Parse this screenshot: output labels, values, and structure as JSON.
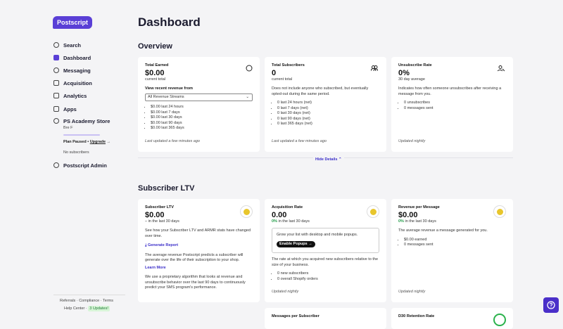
{
  "sidebar": {
    "logo": "Postscript",
    "nav": [
      "Search",
      "Dashboard",
      "Messaging",
      "Acquisition",
      "Analytics",
      "Apps"
    ],
    "store": {
      "name": "PS Academy Store",
      "user": "Bre F",
      "plan": "Plan Paused •",
      "upgrade": "Upgrade",
      "no_subscribers": "No subscribers"
    },
    "admin": "Postscript Admin",
    "footer": {
      "links": [
        "Referrals",
        "Compliance",
        "Terms"
      ],
      "help": "Help Center",
      "updates": "3 Updates!"
    }
  },
  "main": {
    "title": "Dashboard",
    "overview": {
      "title": "Overview",
      "cards": [
        {
          "title": "Total Earned",
          "value": "$0.00",
          "subtitle": "current total",
          "select_label": "View recent revenue from",
          "select": "All Revenue Streams",
          "items": [
            "$0.00 last 24 hours",
            "$0.00 last 7 days",
            "$0.00 last 30 days",
            "$0.00 last 90 days",
            "$0.00 last 365 days"
          ],
          "updated": "Last updated a few minutes ago"
        },
        {
          "title": "Total Subscribers",
          "value": "0",
          "subtitle": "current total",
          "description": "Does not include anyone who subscribed, but eventually opted-out during the same period.",
          "items": [
            "0 last 24 hours (net)",
            "0 last 7 days (net)",
            "0 last 30 days (net)",
            "0 last 90 days (net)",
            "0 last 365 days (net)"
          ],
          "updated": "Last updated a few minutes ago"
        },
        {
          "title": "Unsubscribe Rate",
          "value": "0%",
          "subtitle": "30 day average",
          "description": "Indicates how often someone unsubscribes after receiving a message from you.",
          "items": [
            "0 unsubscribes",
            "0 messages sent"
          ],
          "updated": "Updated nightly"
        }
      ]
    },
    "hide_details": "Hide Details",
    "ltv": {
      "title": "Subscriber LTV",
      "cards": [
        {
          "title": "Subscriber LTV",
          "value": "$0.00",
          "subtitle": "– in the last 30 days",
          "description": "See how your Subscriber LTV and ARMR stats have changed over time.",
          "link": "Generate Report",
          "description2": "The average revenue Postscript predicts a subscriber will generate over the life of their subscription to your shop.",
          "link2": "Learn More",
          "description3": "We use a proprietary algorithm that looks at revenue and unsubscribe behavior over the last 90 days to continuously predict your SMS program's performance."
        },
        {
          "title": "Acquisition Rate",
          "value": "0.00",
          "change": "0%",
          "subtitle": "in the last 30 days",
          "box_text": "Grow your list with desktop and mobile popups.",
          "button": "Enable Popups →",
          "description": "The rate at which you acquired new subscribers relative to the size of your business.",
          "items": [
            "0 new subscribers",
            "0 overall Shopify orders"
          ],
          "updated": "Updated nightly"
        },
        {
          "title": "Revenue per Message",
          "value": "$0.00",
          "change": "0%",
          "subtitle": "in the last 30 days",
          "description": "The average revenue a message generated for you.",
          "items": [
            "$0.00 earned",
            "0 messages sent"
          ],
          "updated": "Updated nightly"
        }
      ],
      "more": [
        "Messages per Subscriber",
        "D30 Retention Rate"
      ]
    }
  }
}
